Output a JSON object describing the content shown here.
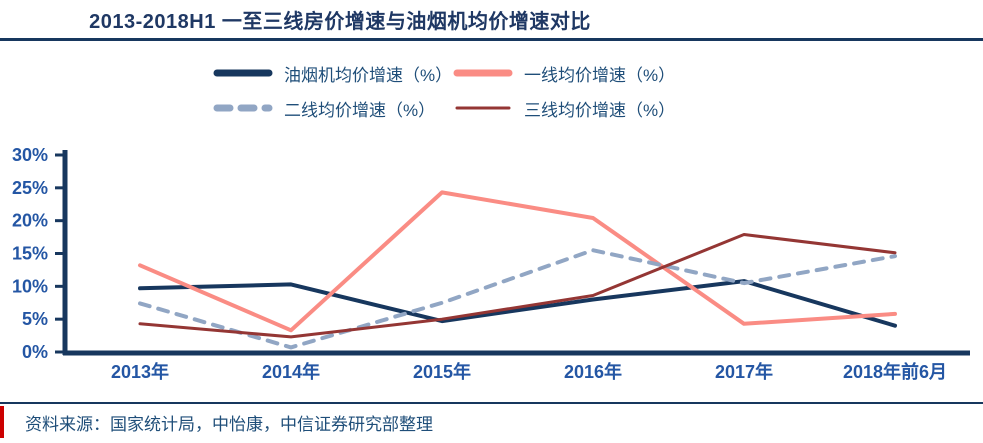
{
  "header": {
    "title": "2013-2018H1 一至三线房价增速与油烟机均价增速对比"
  },
  "legend": {
    "items": [
      {
        "label": "油烟机均价增速（%）",
        "color": "#17375E",
        "style": "solid",
        "thickness": 7
      },
      {
        "label": "一线均价增速（%）",
        "color": "#FA8C84",
        "style": "solid",
        "thickness": 7
      },
      {
        "label": "二线均价增速（%）",
        "color": "#91A6C4",
        "style": "dashed",
        "thickness": 7
      },
      {
        "label": "三线均价增速（%）",
        "color": "#943634",
        "style": "solid",
        "thickness": 3
      }
    ]
  },
  "chart_data": {
    "type": "line",
    "categories": [
      "2013年",
      "2014年",
      "2015年",
      "2016年",
      "2017年",
      "2018年前6月"
    ],
    "series": [
      {
        "name": "油烟机均价增速（%）",
        "color": "#17375E",
        "style": "solid",
        "width": 4,
        "values": [
          9.7,
          10.3,
          4.7,
          8.0,
          10.8,
          4.0
        ]
      },
      {
        "name": "一线均价增速（%）",
        "color": "#FA8C84",
        "style": "solid",
        "width": 4,
        "values": [
          13.2,
          3.3,
          24.3,
          20.4,
          4.3,
          5.8
        ]
      },
      {
        "name": "二线均价增速（%）",
        "color": "#91A6C4",
        "style": "dashed",
        "width": 4,
        "values": [
          7.4,
          0.7,
          7.5,
          15.5,
          10.5,
          14.6
        ]
      },
      {
        "name": "三线均价增速（%）",
        "color": "#943634",
        "style": "solid",
        "width": 3,
        "values": [
          4.3,
          2.3,
          5.0,
          8.6,
          17.9,
          15.1
        ]
      }
    ],
    "y_ticks": [
      "30%",
      "25%",
      "20%",
      "15%",
      "10%",
      "5%",
      "0%"
    ],
    "ylim": [
      0,
      30
    ],
    "grid": false,
    "legend_position": "top",
    "axis_color": "#17375E",
    "tick_label_color": "#2456A4"
  },
  "footer": {
    "source": "资料来源：国家统计局，中怡康，中信证券研究部整理",
    "accent_color": "#CC0000"
  }
}
